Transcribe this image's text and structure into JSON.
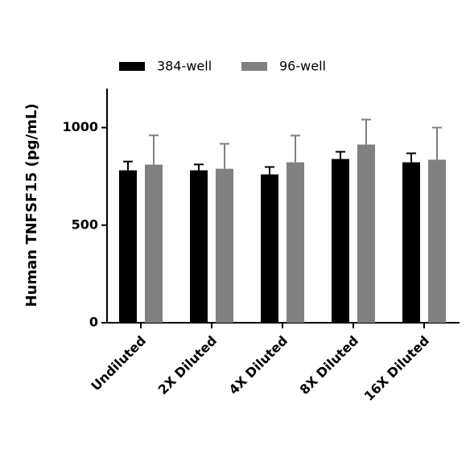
{
  "chart_data": {
    "type": "bar",
    "y_label": "Human TNFSF15 (pg/mL)",
    "categories": [
      "Undiluted",
      "2X Diluted",
      "4X Diluted",
      "8X Diluted",
      "16X Diluted"
    ],
    "series": [
      {
        "name": "384-well",
        "color": "#000000",
        "values": [
          781,
          781,
          760,
          839,
          822
        ],
        "errors": [
          45,
          30,
          38,
          37,
          46
        ]
      },
      {
        "name": "96-well",
        "color": "#808080",
        "values": [
          810,
          789,
          822,
          913,
          835
        ],
        "errors": [
          150,
          128,
          137,
          128,
          165
        ]
      }
    ],
    "ylim": [
      0,
      1200
    ],
    "yticks": [
      0,
      500,
      1000
    ],
    "grid": false
  }
}
